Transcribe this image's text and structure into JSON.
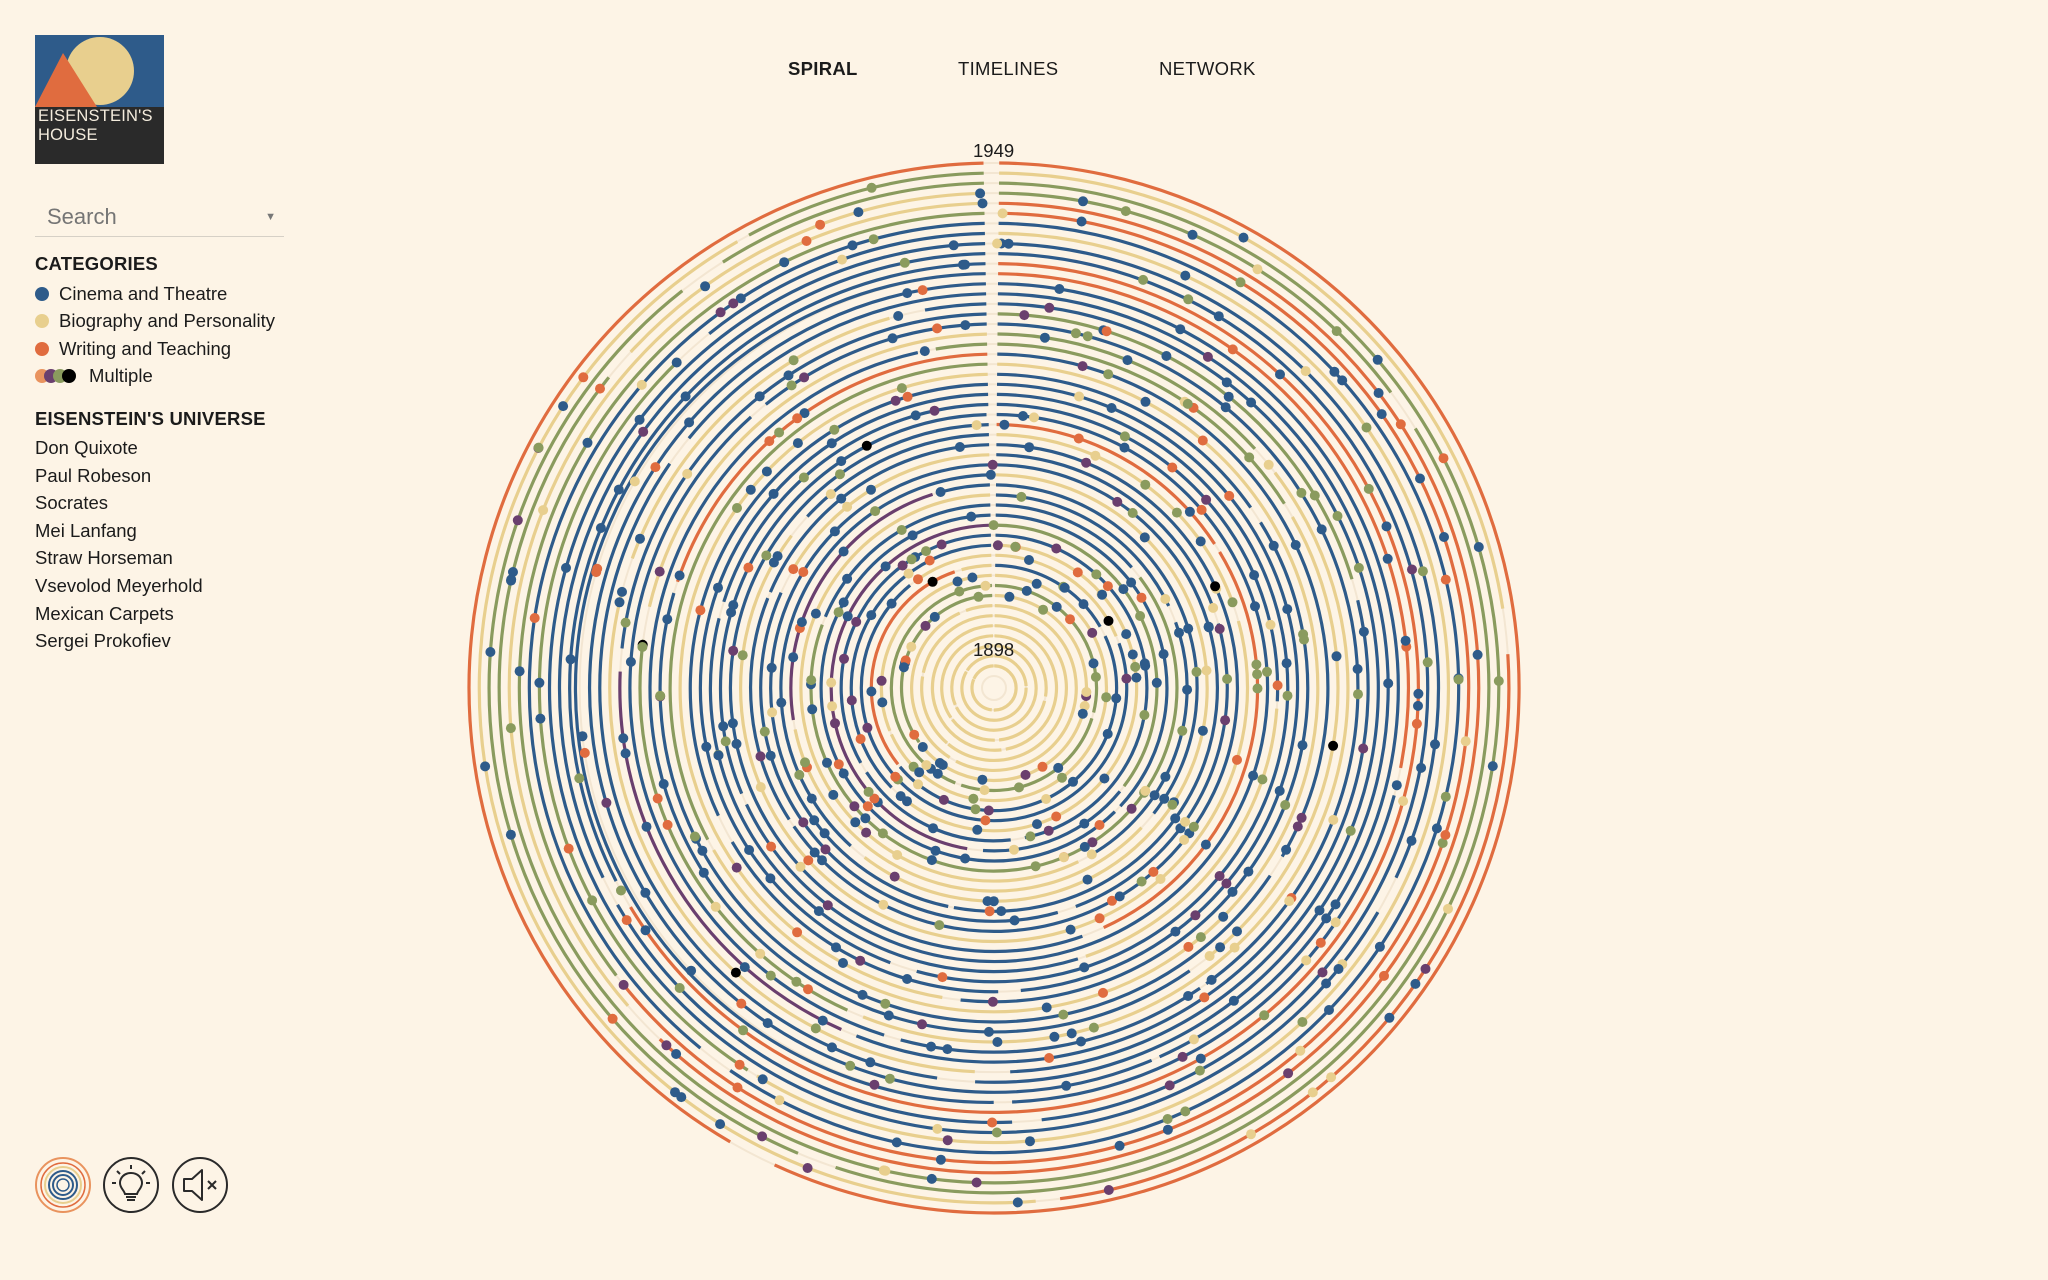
{
  "logo": {
    "line1": "EISENSTEIN'S",
    "line2": "HOUSE"
  },
  "search": {
    "placeholder": "Search"
  },
  "nav": {
    "spiral": "SPIRAL",
    "timelines": "TIMELINES",
    "network": "NETWORK",
    "active": "SPIRAL"
  },
  "categories": {
    "title": "CATEGORIES",
    "items": [
      {
        "label": "Cinema and Theatre",
        "color": "#2e5b8a"
      },
      {
        "label": "Biography and Personality",
        "color": "#e8cf8e"
      },
      {
        "label": "Writing and Teaching",
        "color": "#e06c3f"
      },
      {
        "label": "Multiple",
        "colors": [
          "#e9935e",
          "#6a3f6e",
          "#8a9b5e",
          "#000000"
        ]
      }
    ]
  },
  "universe": {
    "title": "EISENSTEIN'S UNIVERSE",
    "items": [
      "Don Quixote",
      "Paul Robeson",
      "Socrates",
      "Mei Lanfang",
      "Straw Horseman",
      "Vsevolod Meyerhold",
      "Mexican Carpets",
      "Sergei Prokofiev"
    ]
  },
  "spiral": {
    "start_year": "1898",
    "end_year": "1949"
  },
  "colors": {
    "background": "#fdf4e6",
    "cinema": "#2e5b8a",
    "biography": "#e8cf8e",
    "writing": "#e06c3f",
    "olive": "#8a9b5e",
    "purple": "#6a3f6e",
    "multiple": "#000000",
    "logo_dark": "#2a2a2a",
    "logo_blue": "#2e5b8a",
    "logo_orange": "#e06c3f",
    "logo_yellow": "#e8cf8e"
  },
  "controls": {
    "spiral_view_icon": "concentric-circles-icon",
    "hints_icon": "lightbulb-icon",
    "sound_icon": "speaker-muted-icon"
  }
}
